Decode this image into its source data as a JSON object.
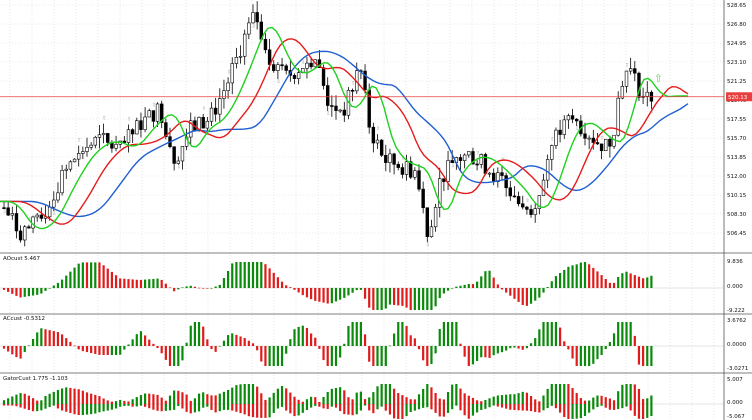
{
  "colors": {
    "background": "#ffffff",
    "grid": "#d8d8d8",
    "candle": "#000000",
    "fractal": "#9a9a9a",
    "alligator_jaw": "#1f5fd1",
    "alligator_teeth": "#e31b1b",
    "alligator_lips": "#1fd11f",
    "hist_up": "#0a8a0a",
    "hist_down": "#e01b1b",
    "current_price_line": "#e84040",
    "current_price_bg": "#e84040",
    "buy_arrow": "#39d339"
  },
  "price_pane": {
    "axis_labels": [
      "528.65",
      "526.80",
      "524.95",
      "523.10",
      "521.25",
      "519.40",
      "517.55",
      "515.70",
      "513.85",
      "512.00",
      "510.15",
      "508.30",
      "506.45"
    ],
    "current_price": "520.13",
    "current_price_value": 520.13,
    "range": [
      505.3,
      529.3
    ]
  },
  "indicators": [
    {
      "label": "AOcust 5.467",
      "axis_labels": [
        "9.836",
        "0.000",
        "-9.222"
      ],
      "range": [
        -10.5,
        11.2
      ]
    },
    {
      "label": "ACcust -0.5312",
      "axis_labels": [
        "3.6762",
        "0.0000",
        "-3.0271"
      ],
      "range": [
        -3.5,
        4.1
      ]
    },
    {
      "label": "GatorCust 1.775 -1.103",
      "axis_labels": [
        "5.007",
        "0.000",
        "-5.067"
      ],
      "range": [
        -5.6,
        5.5
      ]
    }
  ]
}
